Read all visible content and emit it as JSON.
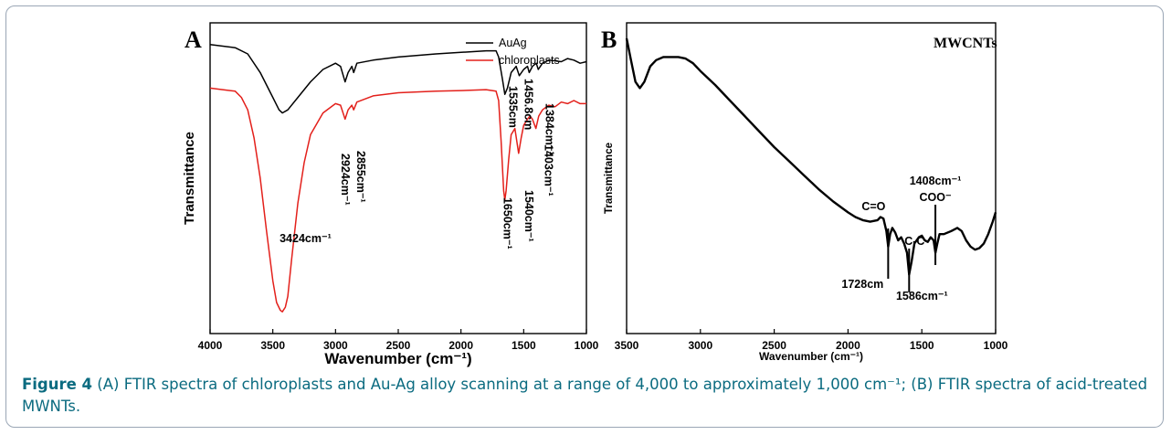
{
  "caption": {
    "lead": "Figure 4",
    "text": " (A) FTIR spectra of chloroplasts and Au-Ag alloy scanning at a range of 4,000 to approximately 1,000 cm⁻¹; (B) FTIR spectra of acid-treated MWNTs."
  },
  "chart_data": [
    {
      "type": "line",
      "panel_label": "A",
      "xlabel": "Wavenumber (cm⁻¹)",
      "ylabel": "Transmittance",
      "xlim": [
        4000,
        1000
      ],
      "x_reversed": true,
      "xticks": [
        4000,
        3500,
        3000,
        2500,
        2000,
        1500,
        1000
      ],
      "y_ticks_shown": false,
      "legend_position": "top-right",
      "series": [
        {
          "name": "AuAg",
          "color": "#000000",
          "points": [
            [
              4000,
              0.93
            ],
            [
              3800,
              0.92
            ],
            [
              3700,
              0.9
            ],
            [
              3600,
              0.84
            ],
            [
              3500,
              0.76
            ],
            [
              3450,
              0.72
            ],
            [
              3424,
              0.71
            ],
            [
              3380,
              0.72
            ],
            [
              3300,
              0.76
            ],
            [
              3200,
              0.81
            ],
            [
              3100,
              0.85
            ],
            [
              3000,
              0.87
            ],
            [
              2960,
              0.86
            ],
            [
              2924,
              0.81
            ],
            [
              2900,
              0.84
            ],
            [
              2870,
              0.86
            ],
            [
              2855,
              0.84
            ],
            [
              2830,
              0.87
            ],
            [
              2700,
              0.88
            ],
            [
              2500,
              0.89
            ],
            [
              2200,
              0.9
            ],
            [
              2000,
              0.905
            ],
            [
              1800,
              0.91
            ],
            [
              1720,
              0.91
            ],
            [
              1700,
              0.89
            ],
            [
              1670,
              0.82
            ],
            [
              1650,
              0.77
            ],
            [
              1630,
              0.79
            ],
            [
              1600,
              0.84
            ],
            [
              1560,
              0.86
            ],
            [
              1535,
              0.83
            ],
            [
              1500,
              0.85
            ],
            [
              1470,
              0.86
            ],
            [
              1456,
              0.84
            ],
            [
              1430,
              0.86
            ],
            [
              1400,
              0.87
            ],
            [
              1384,
              0.85
            ],
            [
              1350,
              0.87
            ],
            [
              1300,
              0.88
            ],
            [
              1200,
              0.875
            ],
            [
              1150,
              0.885
            ],
            [
              1100,
              0.88
            ],
            [
              1050,
              0.87
            ],
            [
              1000,
              0.875
            ]
          ]
        },
        {
          "name": "chloroplasts",
          "color": "#e3201b",
          "points": [
            [
              4000,
              0.79
            ],
            [
              3900,
              0.785
            ],
            [
              3800,
              0.78
            ],
            [
              3750,
              0.76
            ],
            [
              3700,
              0.72
            ],
            [
              3650,
              0.63
            ],
            [
              3600,
              0.5
            ],
            [
              3550,
              0.33
            ],
            [
              3500,
              0.17
            ],
            [
              3470,
              0.1
            ],
            [
              3440,
              0.075
            ],
            [
              3424,
              0.07
            ],
            [
              3400,
              0.085
            ],
            [
              3380,
              0.12
            ],
            [
              3350,
              0.24
            ],
            [
              3300,
              0.42
            ],
            [
              3250,
              0.55
            ],
            [
              3200,
              0.64
            ],
            [
              3100,
              0.71
            ],
            [
              3000,
              0.74
            ],
            [
              2960,
              0.735
            ],
            [
              2924,
              0.69
            ],
            [
              2900,
              0.72
            ],
            [
              2870,
              0.735
            ],
            [
              2855,
              0.72
            ],
            [
              2830,
              0.745
            ],
            [
              2700,
              0.765
            ],
            [
              2500,
              0.775
            ],
            [
              2200,
              0.78
            ],
            [
              2000,
              0.782
            ],
            [
              1800,
              0.785
            ],
            [
              1720,
              0.78
            ],
            [
              1700,
              0.75
            ],
            [
              1680,
              0.62
            ],
            [
              1660,
              0.46
            ],
            [
              1650,
              0.43
            ],
            [
              1640,
              0.46
            ],
            [
              1620,
              0.56
            ],
            [
              1600,
              0.64
            ],
            [
              1570,
              0.66
            ],
            [
              1540,
              0.58
            ],
            [
              1520,
              0.63
            ],
            [
              1500,
              0.67
            ],
            [
              1470,
              0.69
            ],
            [
              1450,
              0.7
            ],
            [
              1430,
              0.69
            ],
            [
              1403,
              0.66
            ],
            [
              1380,
              0.7
            ],
            [
              1350,
              0.72
            ],
            [
              1300,
              0.735
            ],
            [
              1250,
              0.73
            ],
            [
              1200,
              0.745
            ],
            [
              1150,
              0.74
            ],
            [
              1100,
              0.75
            ],
            [
              1050,
              0.74
            ],
            [
              1000,
              0.74
            ]
          ]
        }
      ],
      "annotations": [
        {
          "text": "3424cm⁻¹",
          "x": 3424
        },
        {
          "text": "2924cm⁻¹",
          "x": 2924
        },
        {
          "text": "2855cm⁻¹",
          "x": 2855
        },
        {
          "text": "1650cm⁻¹",
          "x": 1650
        },
        {
          "text": "1540cm⁻¹",
          "x": 1540
        },
        {
          "text": "1535cm",
          "x": 1535
        },
        {
          "text": "1456.8cm",
          "x": 1456
        },
        {
          "text": "1403cm⁻¹",
          "x": 1403
        },
        {
          "text": "1384cm⁻¹",
          "x": 1384
        }
      ]
    },
    {
      "type": "line",
      "panel_label": "B",
      "title": "MWCNTs",
      "xlabel": "Wavenumber (cm⁻¹)",
      "ylabel": "Transmittance",
      "xlim": [
        3500,
        1000
      ],
      "x_reversed": true,
      "xticks": [
        3500,
        3000,
        2500,
        2000,
        1500,
        1000
      ],
      "y_ticks_shown": false,
      "series": [
        {
          "name": "",
          "color": "#000000",
          "points": [
            [
              3500,
              0.95
            ],
            [
              3470,
              0.88
            ],
            [
              3440,
              0.81
            ],
            [
              3410,
              0.79
            ],
            [
              3380,
              0.81
            ],
            [
              3340,
              0.86
            ],
            [
              3300,
              0.88
            ],
            [
              3250,
              0.89
            ],
            [
              3200,
              0.89
            ],
            [
              3150,
              0.89
            ],
            [
              3100,
              0.885
            ],
            [
              3050,
              0.87
            ],
            [
              3000,
              0.845
            ],
            [
              2900,
              0.8
            ],
            [
              2800,
              0.75
            ],
            [
              2700,
              0.7
            ],
            [
              2600,
              0.65
            ],
            [
              2500,
              0.6
            ],
            [
              2400,
              0.555
            ],
            [
              2300,
              0.51
            ],
            [
              2200,
              0.465
            ],
            [
              2100,
              0.425
            ],
            [
              2000,
              0.39
            ],
            [
              1950,
              0.375
            ],
            [
              1900,
              0.365
            ],
            [
              1850,
              0.36
            ],
            [
              1800,
              0.365
            ],
            [
              1780,
              0.375
            ],
            [
              1760,
              0.37
            ],
            [
              1740,
              0.33
            ],
            [
              1728,
              0.28
            ],
            [
              1715,
              0.32
            ],
            [
              1700,
              0.34
            ],
            [
              1680,
              0.325
            ],
            [
              1660,
              0.3
            ],
            [
              1640,
              0.31
            ],
            [
              1620,
              0.29
            ],
            [
              1600,
              0.26
            ],
            [
              1586,
              0.19
            ],
            [
              1570,
              0.23
            ],
            [
              1550,
              0.29
            ],
            [
              1520,
              0.31
            ],
            [
              1500,
              0.315
            ],
            [
              1480,
              0.3
            ],
            [
              1460,
              0.295
            ],
            [
              1440,
              0.31
            ],
            [
              1420,
              0.3
            ],
            [
              1408,
              0.26
            ],
            [
              1395,
              0.29
            ],
            [
              1380,
              0.32
            ],
            [
              1350,
              0.32
            ],
            [
              1300,
              0.33
            ],
            [
              1260,
              0.34
            ],
            [
              1230,
              0.33
            ],
            [
              1200,
              0.3
            ],
            [
              1170,
              0.28
            ],
            [
              1140,
              0.27
            ],
            [
              1110,
              0.275
            ],
            [
              1080,
              0.29
            ],
            [
              1050,
              0.32
            ],
            [
              1020,
              0.36
            ],
            [
              1000,
              0.39
            ]
          ]
        }
      ],
      "annotations": [
        {
          "text": "C=O",
          "x": 1728
        },
        {
          "text": "1728cm",
          "x": 1728
        },
        {
          "text": "C-C",
          "x": 1586
        },
        {
          "text": "1586cm⁻¹",
          "x": 1586
        },
        {
          "text": "1408cm⁻¹",
          "x": 1408
        },
        {
          "text": "COO⁻",
          "x": 1408
        }
      ]
    }
  ]
}
